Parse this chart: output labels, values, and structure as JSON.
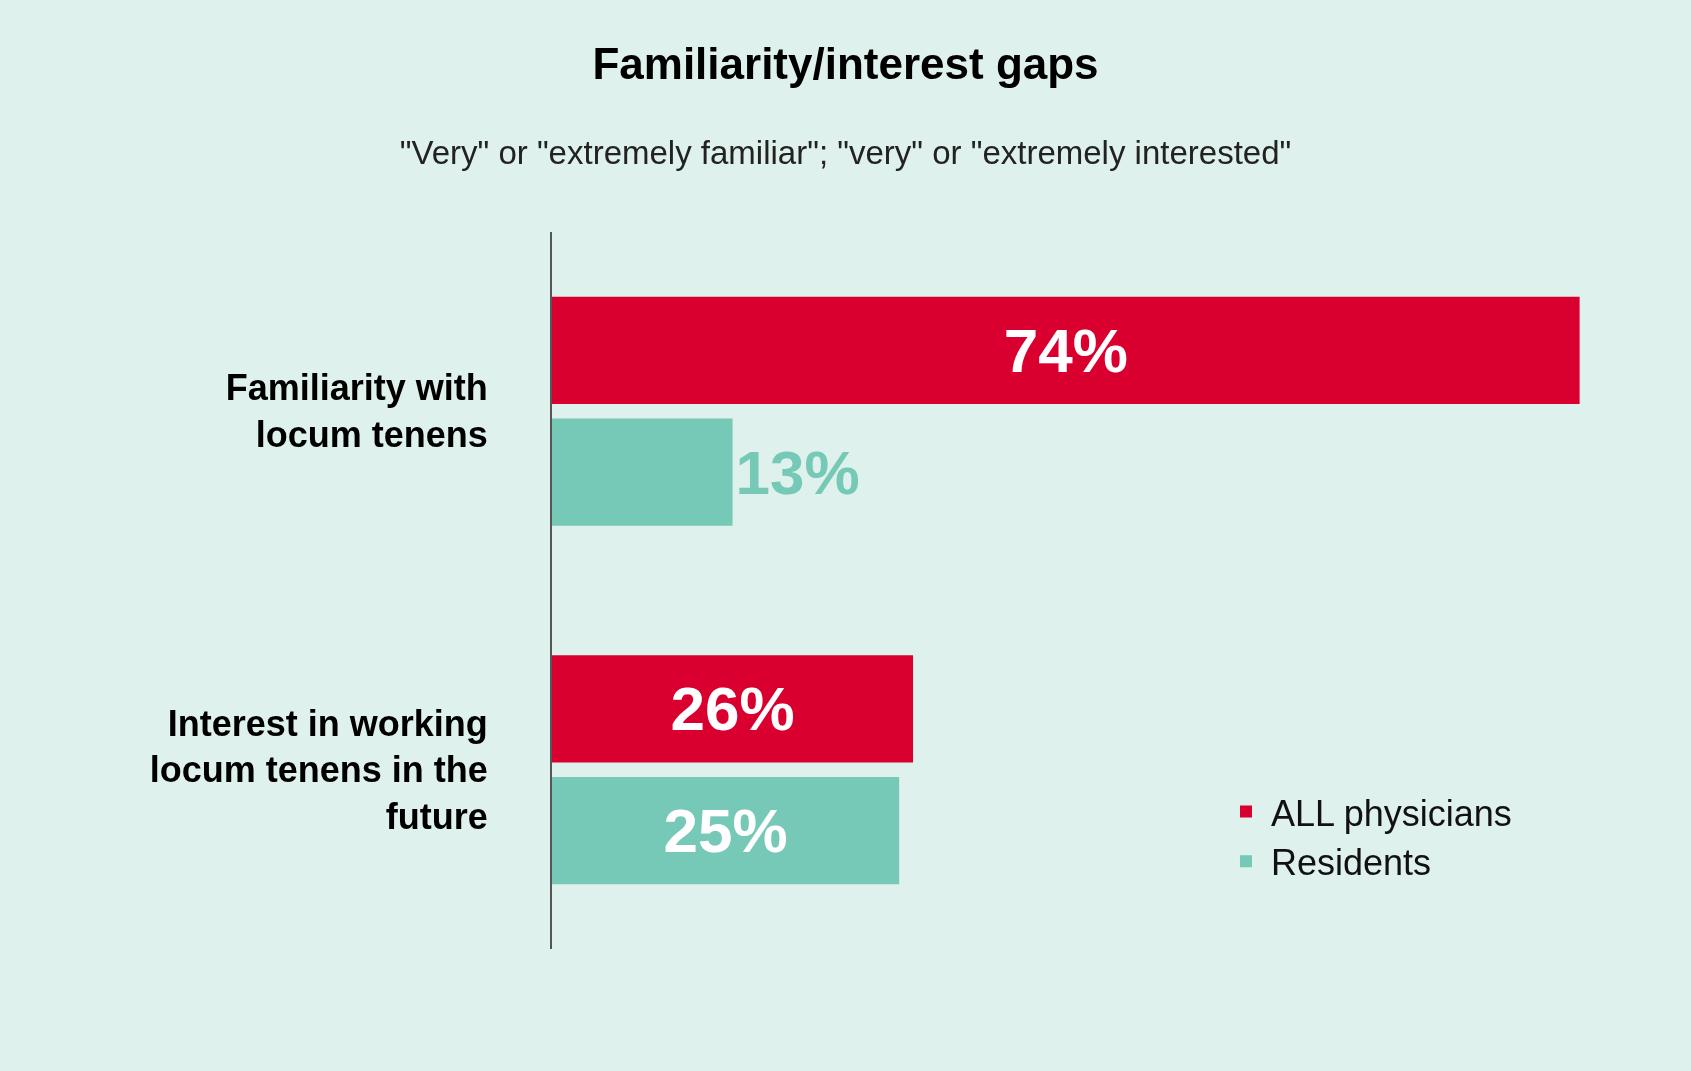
{
  "chart_data": {
    "type": "bar",
    "orientation": "horizontal",
    "title": "Familiarity/interest gaps",
    "subtitle": "\"Very\" or \"extremely familiar\"; \"very\" or \"extremely interested\"",
    "categories": [
      "Familiarity with locum tenens",
      "Interest in working locum tenens in the future"
    ],
    "series": [
      {
        "name": "ALL physicians",
        "color": "#d9002f",
        "values": [
          74,
          26
        ],
        "value_labels": [
          "74%",
          "26%"
        ]
      },
      {
        "name": "Residents",
        "color": "#76c8b7",
        "values": [
          13,
          25
        ],
        "value_labels": [
          "13%",
          "25%"
        ]
      }
    ],
    "legend": "bottom right"
  }
}
